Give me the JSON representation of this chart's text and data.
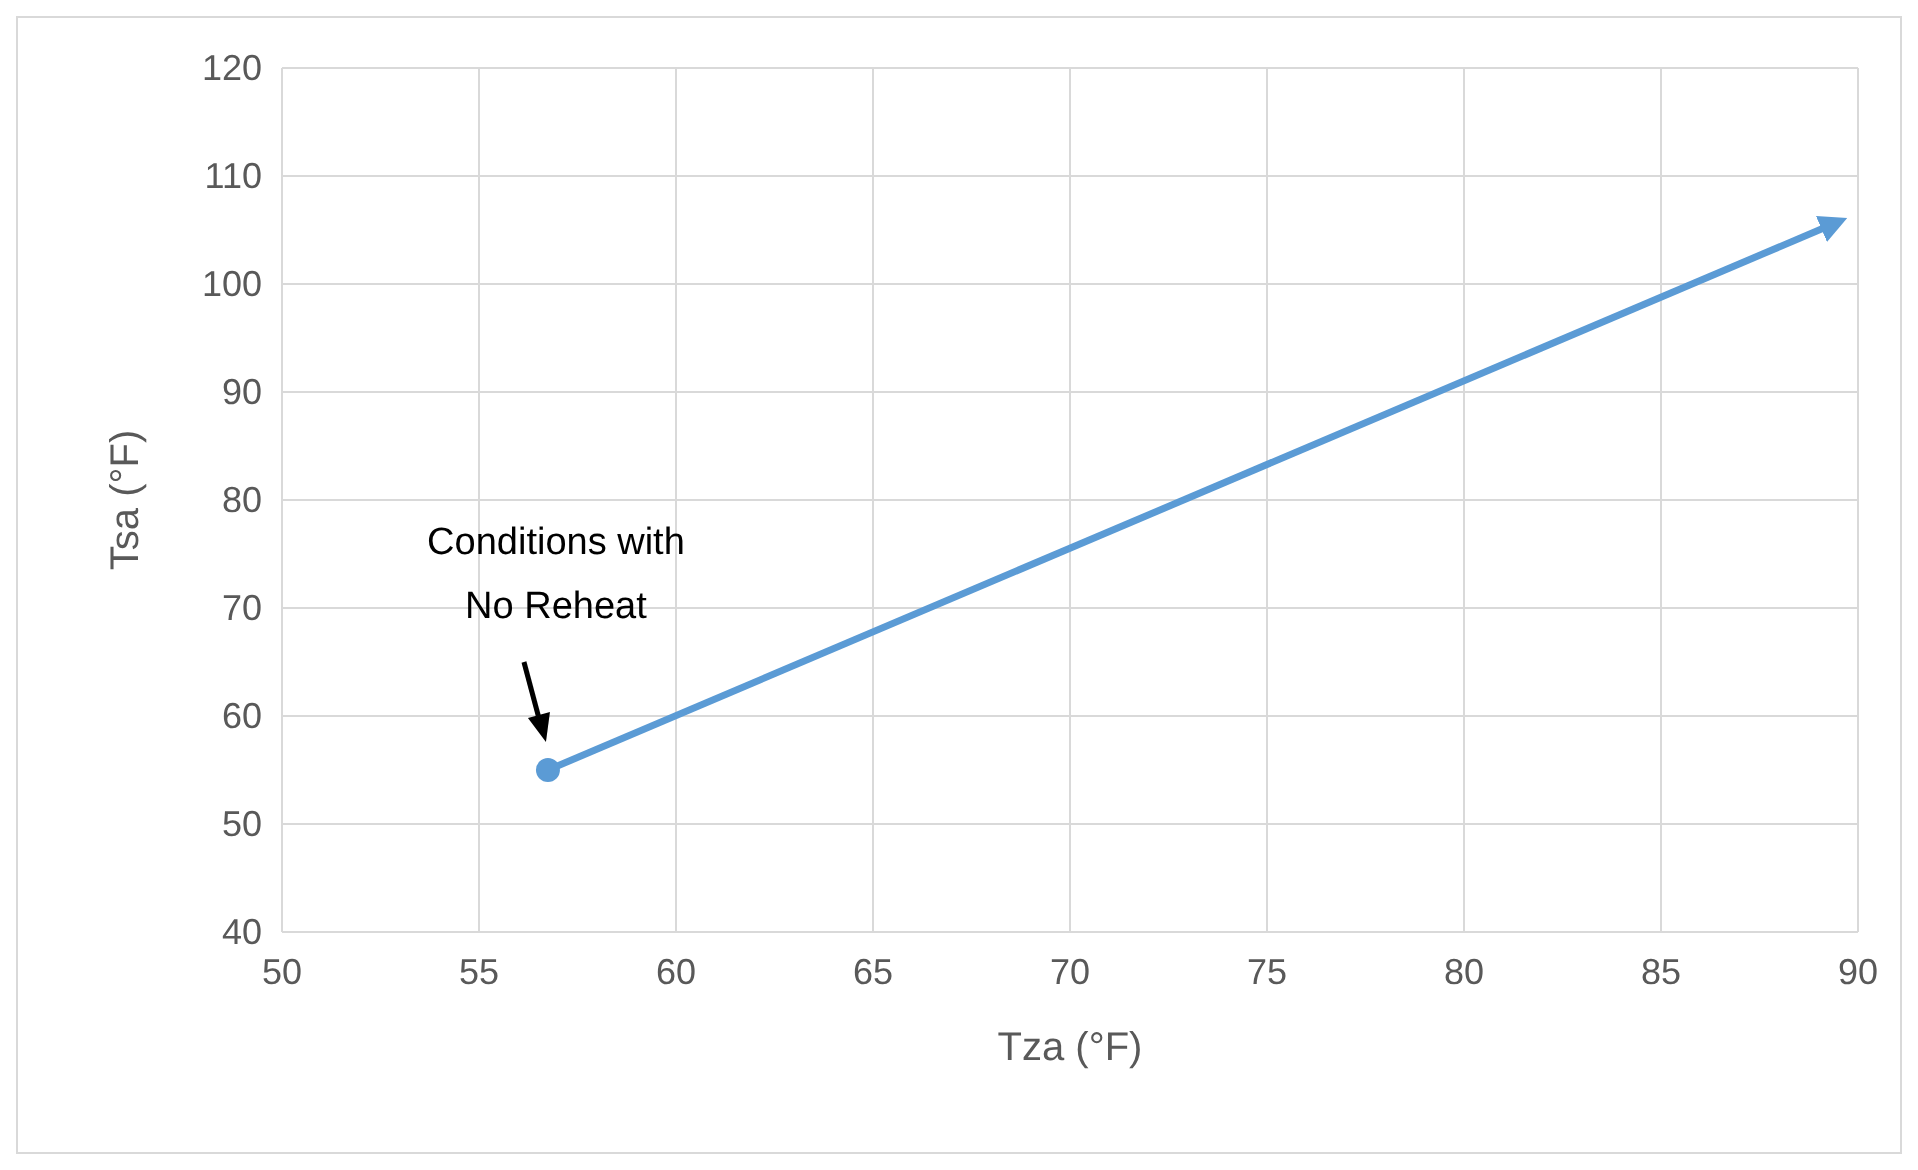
{
  "chart_data": {
    "type": "line",
    "xlabel": "Tza (°F)",
    "ylabel": "Tsa (°F)",
    "series": [
      {
        "color": "#5b9bd5",
        "x": [
          56.75,
          89.4
        ],
        "values": [
          55,
          105.6
        ]
      }
    ],
    "xlim": [
      50,
      90
    ],
    "xticks": [
      50,
      55,
      60,
      65,
      70,
      75,
      80,
      85,
      90
    ],
    "ylim": [
      40,
      120
    ],
    "yticks": [
      40,
      50,
      60,
      70,
      80,
      90,
      100,
      110,
      120
    ],
    "grid": true,
    "marker": "circle",
    "line_style": "solid",
    "annotations": [
      "Conditions with\nNo Reheat"
    ]
  }
}
